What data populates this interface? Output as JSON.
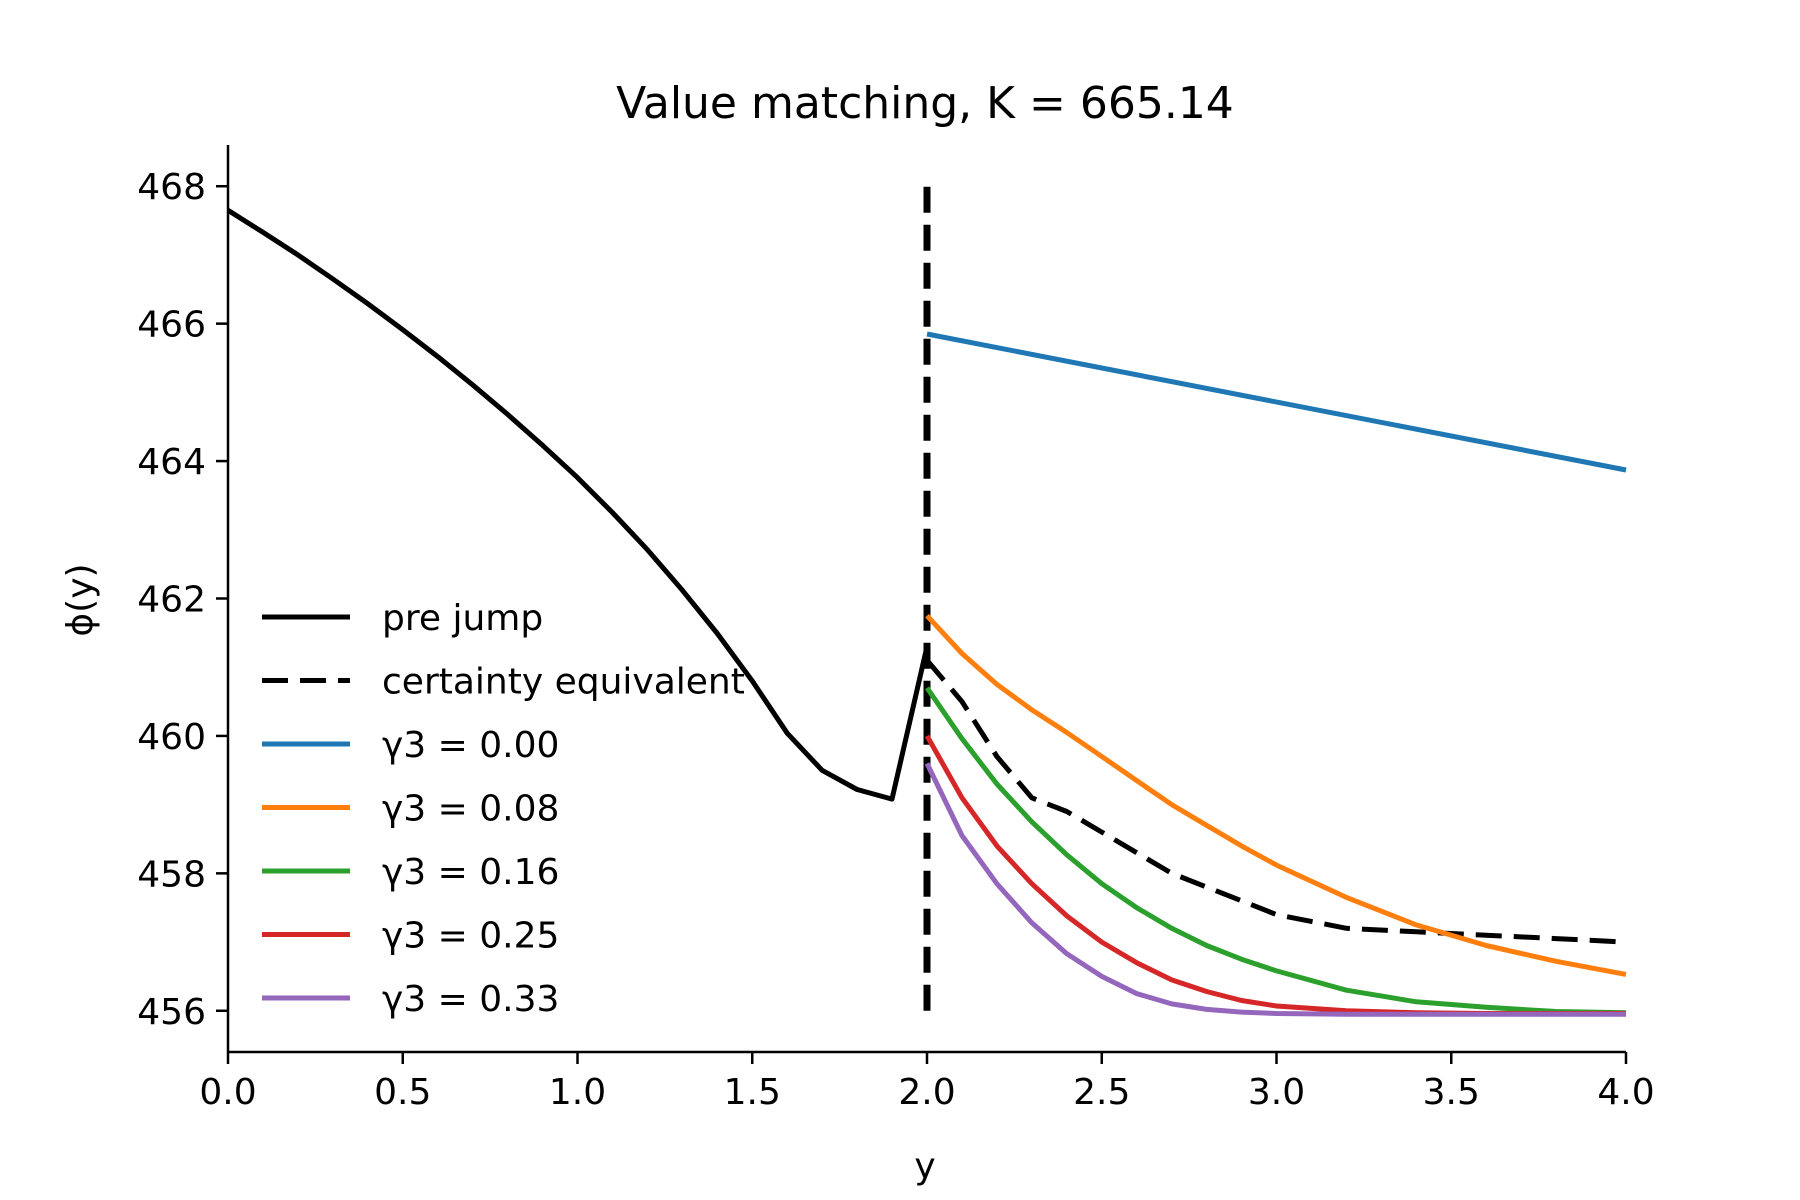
{
  "chart_data": {
    "type": "line",
    "title": "Value matching, K = 665.14",
    "xlabel": "y",
    "ylabel": "ϕ(y)",
    "xlim": [
      0.0,
      4.0
    ],
    "ylim": [
      455.4,
      468.6
    ],
    "xticks": [
      "0.0",
      "0.5",
      "1.0",
      "1.5",
      "2.0",
      "2.5",
      "3.0",
      "3.5",
      "4.0"
    ],
    "yticks": [
      "456",
      "458",
      "460",
      "462",
      "464",
      "466",
      "468"
    ],
    "grid": false,
    "legend_position": "center-left",
    "vline": {
      "x": 2.0,
      "y_from": 456.0,
      "y_to": 468.0,
      "style": "dashed",
      "color": "#000000"
    },
    "series": [
      {
        "name": "pre jump",
        "color": "#000000",
        "style": "solid",
        "x": [
          0.0,
          0.1,
          0.2,
          0.3,
          0.4,
          0.5,
          0.6,
          0.7,
          0.8,
          0.9,
          1.0,
          1.1,
          1.2,
          1.3,
          1.4,
          1.5,
          1.6,
          1.7,
          1.8,
          1.9,
          2.0
        ],
        "y": [
          467.65,
          467.33,
          467.0,
          466.65,
          466.29,
          465.91,
          465.52,
          465.11,
          464.68,
          464.23,
          463.76,
          463.25,
          462.71,
          462.12,
          461.49,
          460.8,
          460.04,
          459.5,
          459.22,
          459.08,
          461.3
        ]
      },
      {
        "name": "certainty equivalent",
        "color": "#000000",
        "style": "dashed",
        "x": [
          2.0,
          2.1,
          2.2,
          2.3,
          2.4,
          2.5,
          2.6,
          2.7,
          2.8,
          2.9,
          3.0,
          3.2,
          3.4,
          3.6,
          3.8,
          4.0
        ],
        "y": [
          461.1,
          460.5,
          459.7,
          459.1,
          458.9,
          458.6,
          458.3,
          458.0,
          457.8,
          457.6,
          457.4,
          457.2,
          457.15,
          457.1,
          457.05,
          457.0
        ]
      },
      {
        "name": "γ3 = 0.00",
        "color": "#1f77b4",
        "style": "solid",
        "x": [
          2.0,
          4.0
        ],
        "y": [
          465.85,
          463.87
        ]
      },
      {
        "name": "γ3 = 0.08",
        "color": "#ff7f0e",
        "style": "solid",
        "x": [
          2.0,
          2.1,
          2.2,
          2.3,
          2.4,
          2.5,
          2.6,
          2.7,
          2.8,
          2.9,
          3.0,
          3.2,
          3.4,
          3.6,
          3.8,
          4.0
        ],
        "y": [
          461.75,
          461.2,
          460.75,
          460.38,
          460.05,
          459.7,
          459.35,
          459.0,
          458.7,
          458.4,
          458.12,
          457.65,
          457.25,
          456.95,
          456.72,
          456.53
        ]
      },
      {
        "name": "γ3 = 0.16",
        "color": "#2ca02c",
        "style": "solid",
        "x": [
          2.0,
          2.1,
          2.2,
          2.3,
          2.4,
          2.5,
          2.6,
          2.7,
          2.8,
          2.9,
          3.0,
          3.2,
          3.4,
          3.6,
          3.8,
          4.0
        ],
        "y": [
          460.7,
          459.96,
          459.3,
          458.75,
          458.27,
          457.85,
          457.5,
          457.2,
          456.95,
          456.75,
          456.58,
          456.3,
          456.13,
          456.05,
          455.99,
          455.97
        ]
      },
      {
        "name": "γ3 = 0.25",
        "color": "#d62728",
        "style": "solid",
        "x": [
          2.0,
          2.1,
          2.2,
          2.3,
          2.4,
          2.5,
          2.6,
          2.7,
          2.8,
          2.9,
          3.0,
          3.2,
          3.4,
          3.6,
          3.8,
          4.0
        ],
        "y": [
          460.0,
          459.1,
          458.4,
          457.85,
          457.38,
          457.0,
          456.7,
          456.45,
          456.28,
          456.15,
          456.07,
          456.0,
          455.97,
          455.96,
          455.96,
          455.96
        ]
      },
      {
        "name": "γ3 = 0.33",
        "color": "#9467bd",
        "style": "solid",
        "x": [
          2.0,
          2.1,
          2.2,
          2.3,
          2.4,
          2.5,
          2.6,
          2.7,
          2.8,
          2.9,
          3.0,
          3.2,
          3.4,
          3.6,
          3.8,
          4.0
        ],
        "y": [
          459.6,
          458.55,
          457.85,
          457.28,
          456.83,
          456.5,
          456.25,
          456.1,
          456.02,
          455.98,
          455.96,
          455.95,
          455.95,
          455.95,
          455.95,
          455.95
        ]
      }
    ]
  }
}
